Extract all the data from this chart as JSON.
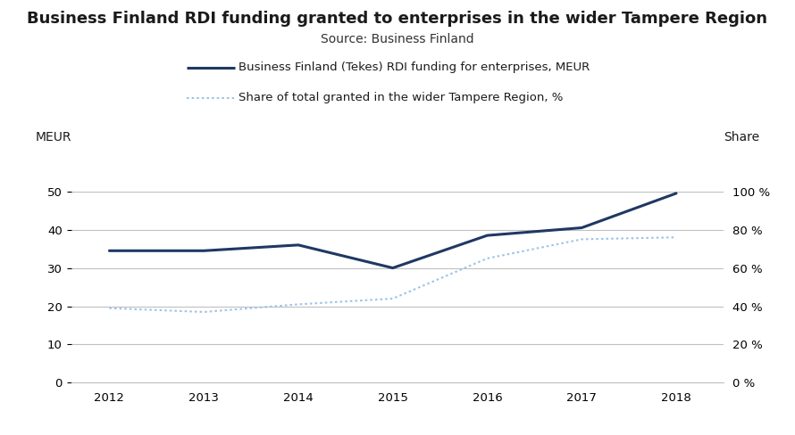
{
  "title": "Business Finland RDI funding granted to enterprises in the wider Tampere Region",
  "subtitle": "Source: Business Finland",
  "years": [
    2012,
    2013,
    2014,
    2015,
    2016,
    2017,
    2018
  ],
  "meur_values": [
    34.5,
    34.5,
    36.0,
    30.0,
    38.5,
    40.5,
    49.5
  ],
  "share_values": [
    39,
    37,
    41,
    44,
    65,
    75,
    76
  ],
  "left_ylim": [
    0,
    50
  ],
  "right_ylim": [
    0,
    100
  ],
  "left_yticks": [
    0,
    10,
    20,
    30,
    40,
    50
  ],
  "right_yticks": [
    0,
    20,
    40,
    60,
    80,
    100
  ],
  "left_ylabel": "MEUR",
  "right_ylabel": "Share",
  "line1_color": "#1F3864",
  "line2_color": "#9DC3E6",
  "line1_label": "Business Finland (Tekes) RDI funding for enterprises, MEUR",
  "line2_label": "Share of total granted in the wider Tampere Region, %",
  "title_fontsize": 13,
  "subtitle_fontsize": 10,
  "label_fontsize": 9.5,
  "axis_label_fontsize": 10,
  "background_color": "#ffffff",
  "grid_color": "#c0c0c0"
}
